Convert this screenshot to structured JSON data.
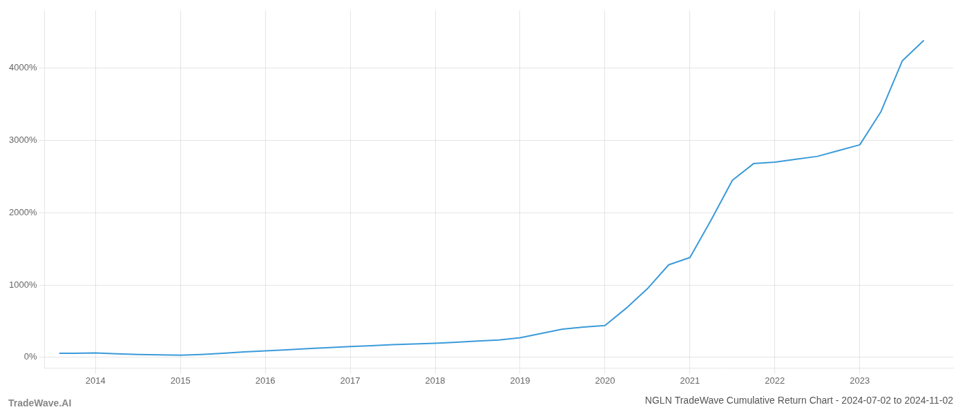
{
  "chart_data": {
    "type": "line",
    "title": "NGLN TradeWave Cumulative Return Chart - 2024-07-02 to 2024-11-02",
    "annotations": [
      "TradeWave.AI"
    ],
    "color": "#3a9ad9",
    "grid": true,
    "x": [
      2013.58,
      2013.75,
      2014.0,
      2014.25,
      2014.5,
      2014.75,
      2015.0,
      2015.25,
      2015.5,
      2015.75,
      2016.0,
      2016.25,
      2016.5,
      2016.75,
      2017.0,
      2017.25,
      2017.5,
      2017.75,
      2018.0,
      2018.25,
      2018.5,
      2018.75,
      2019.0,
      2019.25,
      2019.5,
      2019.75,
      2020.0,
      2020.25,
      2020.5,
      2020.75,
      2021.0,
      2021.25,
      2021.5,
      2021.75,
      2022.0,
      2022.25,
      2022.5,
      2022.75,
      2023.0,
      2023.25,
      2023.5,
      2023.75
    ],
    "values": [
      55,
      55,
      60,
      50,
      40,
      35,
      30,
      40,
      55,
      75,
      90,
      105,
      120,
      135,
      150,
      162,
      175,
      185,
      195,
      210,
      225,
      240,
      270,
      330,
      390,
      420,
      440,
      680,
      950,
      1280,
      1380,
      1900,
      2450,
      2680,
      2700,
      2740,
      2780,
      2860,
      2940,
      3400,
      4100,
      4380
    ],
    "xlim": [
      2013.4,
      2024.1
    ],
    "xticks": [
      2014,
      2015,
      2016,
      2017,
      2018,
      2019,
      2020,
      2021,
      2022,
      2023
    ],
    "ylim": [
      -150,
      4800
    ],
    "yticks": [
      {
        "value": 0,
        "label": "0%"
      },
      {
        "value": 1000,
        "label": "1000%"
      },
      {
        "value": 2000,
        "label": "2000%"
      },
      {
        "value": 3000,
        "label": "3000%"
      },
      {
        "value": 4000,
        "label": "4000%"
      }
    ]
  }
}
